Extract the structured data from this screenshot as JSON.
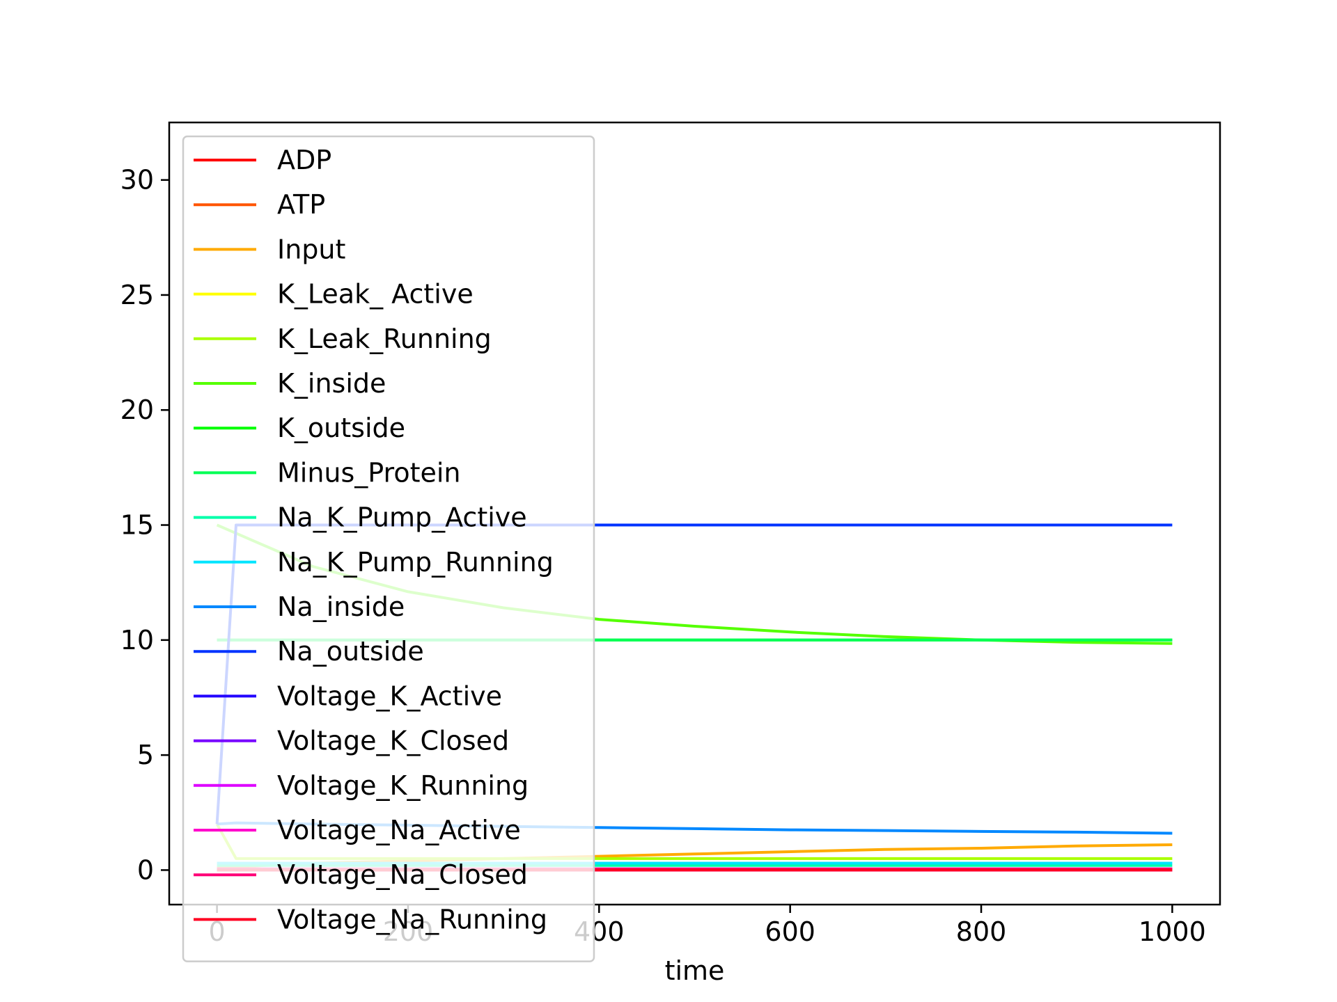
{
  "chart_data": {
    "type": "line",
    "title": "",
    "xlabel": "time",
    "ylabel": "",
    "xlim": [
      -50,
      1050
    ],
    "ylim": [
      -1.5,
      32.5
    ],
    "xticks": [
      0,
      200,
      400,
      600,
      800,
      1000
    ],
    "yticks": [
      0,
      5,
      10,
      15,
      20,
      25,
      30
    ],
    "xtick_labels": [
      "0",
      "200",
      "400",
      "600",
      "800",
      "1000"
    ],
    "ytick_labels": [
      "0",
      "5",
      "10",
      "15",
      "20",
      "25",
      "30"
    ],
    "grid": false,
    "legend_position": "upper-left",
    "series": [
      {
        "name": "ADP",
        "color": "#ff0000",
        "x": [
          0,
          20,
          1000
        ],
        "y": [
          0,
          0,
          0
        ]
      },
      {
        "name": "ATP",
        "color": "#ff5500",
        "x": [
          0,
          20,
          1000
        ],
        "y": [
          0,
          0,
          0
        ]
      },
      {
        "name": "Input",
        "color": "#ffaa00",
        "x": [
          0,
          100,
          200,
          300,
          400,
          500,
          600,
          700,
          800,
          900,
          1000
        ],
        "y": [
          0.1,
          0.3,
          0.4,
          0.5,
          0.6,
          0.7,
          0.8,
          0.9,
          0.95,
          1.05,
          1.1
        ]
      },
      {
        "name": "K_Leak_ Active",
        "color": "#ffff00",
        "x": [
          0,
          1000
        ],
        "y": [
          0,
          0
        ]
      },
      {
        "name": "K_Leak_Running",
        "color": "#aaff00",
        "x": [
          0,
          20,
          1000
        ],
        "y": [
          2,
          0.5,
          0.5
        ]
      },
      {
        "name": "K_inside",
        "color": "#55ff00",
        "x": [
          0,
          100,
          200,
          300,
          400,
          500,
          600,
          700,
          800,
          900,
          1000
        ],
        "y": [
          15,
          13.2,
          12.1,
          11.4,
          10.9,
          10.6,
          10.35,
          10.15,
          10.0,
          9.9,
          9.85
        ]
      },
      {
        "name": "K_outside",
        "color": "#00ff00",
        "x": [
          0,
          100,
          200,
          300,
          400,
          500,
          600,
          700,
          800,
          900,
          1000
        ],
        "y": [
          10,
          10,
          10,
          10,
          10,
          10,
          10,
          10,
          10,
          10,
          10
        ]
      },
      {
        "name": "Minus_Protein",
        "color": "#00ff55",
        "x": [
          0,
          1000
        ],
        "y": [
          10,
          10
        ]
      },
      {
        "name": "Na_K_Pump_Active",
        "color": "#00ffaa",
        "x": [
          0,
          1000
        ],
        "y": [
          0.2,
          0.2
        ]
      },
      {
        "name": "Na_K_Pump_Running",
        "color": "#00e5ff",
        "x": [
          0,
          1000
        ],
        "y": [
          0.3,
          0.3
        ]
      },
      {
        "name": "Na_inside",
        "color": "#0088ff",
        "x": [
          0,
          20,
          100,
          200,
          300,
          400,
          500,
          600,
          700,
          800,
          900,
          1000
        ],
        "y": [
          2,
          2.05,
          2.0,
          1.95,
          1.9,
          1.85,
          1.8,
          1.75,
          1.72,
          1.68,
          1.65,
          1.6
        ]
      },
      {
        "name": "Na_outside",
        "color": "#0033ff",
        "x": [
          0,
          20,
          1000
        ],
        "y": [
          2,
          15,
          15
        ]
      },
      {
        "name": "Voltage_K_Active",
        "color": "#2200ff",
        "x": [
          0,
          1000
        ],
        "y": [
          0,
          0
        ]
      },
      {
        "name": "Voltage_K_Closed",
        "color": "#7700ff",
        "x": [
          0,
          1000
        ],
        "y": [
          0.05,
          0.05
        ]
      },
      {
        "name": "Voltage_K_Running",
        "color": "#dd00ff",
        "x": [
          0,
          1000
        ],
        "y": [
          0,
          0
        ]
      },
      {
        "name": "Voltage_Na_Active",
        "color": "#ff00cc",
        "x": [
          0,
          1000
        ],
        "y": [
          0,
          0
        ]
      },
      {
        "name": "Voltage_Na_Closed",
        "color": "#ff0077",
        "x": [
          0,
          1000
        ],
        "y": [
          0.05,
          0.05
        ]
      },
      {
        "name": "Voltage_Na_Running",
        "color": "#ff0022",
        "x": [
          0,
          1000
        ],
        "y": [
          0,
          0
        ]
      }
    ]
  }
}
